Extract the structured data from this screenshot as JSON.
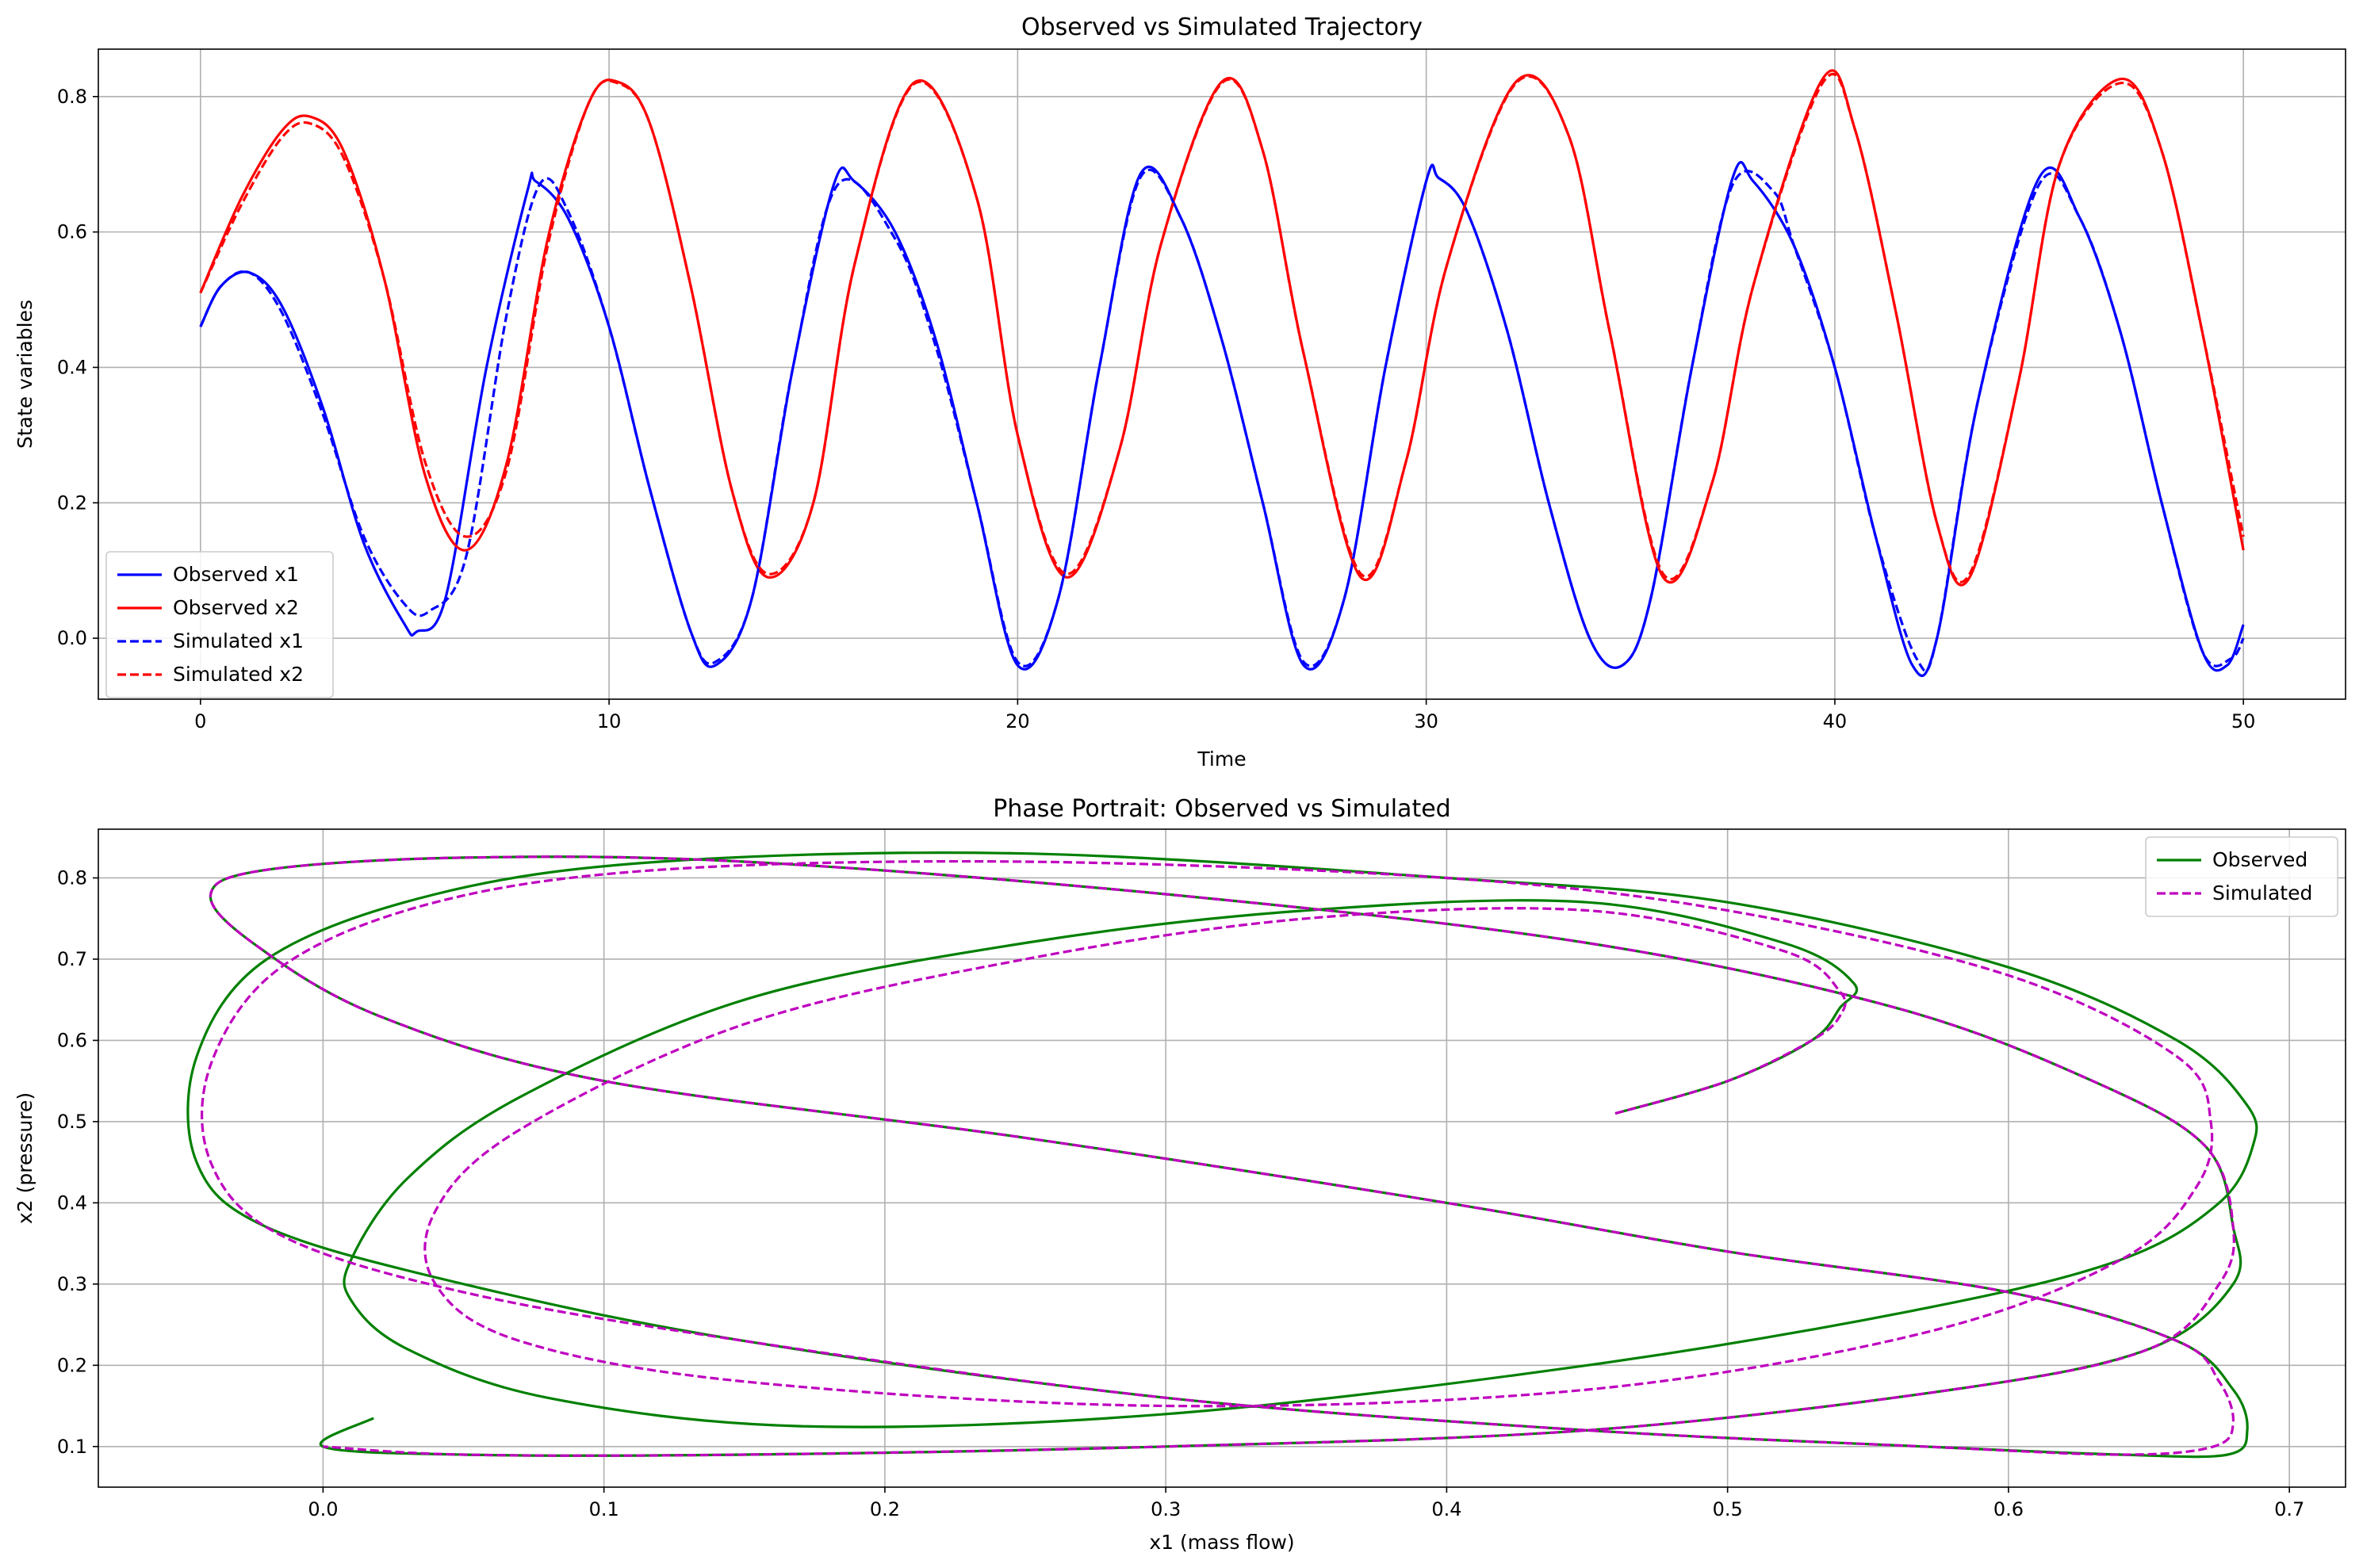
{
  "chart_data": [
    {
      "type": "line",
      "title": "Observed vs Simulated Trajectory",
      "xlabel": "Time",
      "ylabel": "State variables",
      "xlim": [
        -2.5,
        52.5
      ],
      "ylim": [
        -0.09,
        0.87
      ],
      "xticks": [
        0,
        10,
        20,
        30,
        40,
        50
      ],
      "yticks": [
        0.0,
        0.2,
        0.4,
        0.6,
        0.8
      ],
      "xtick_labels": [
        "0",
        "10",
        "20",
        "30",
        "40",
        "50"
      ],
      "ytick_labels": [
        "0.0",
        "0.2",
        "0.4",
        "0.6",
        "0.8"
      ],
      "grid": true,
      "legend_position": "lower-left",
      "series": [
        {
          "name": "Observed x1",
          "color": "#0000ff",
          "style": "solid",
          "x": [
            0,
            0.5,
            1.2,
            2,
            3,
            4,
            5,
            5.3,
            6,
            7,
            8,
            8.2,
            9,
            10,
            11,
            12,
            12.6,
            13.5,
            14.5,
            15.5,
            16,
            17,
            18,
            19,
            20,
            21,
            22,
            23,
            24,
            25,
            26,
            27,
            28,
            29,
            30,
            30.3,
            31,
            32,
            33,
            34,
            34.8,
            35.5,
            36.5,
            37.5,
            38,
            39,
            40,
            41,
            41.9,
            42.5,
            43.5,
            45,
            46,
            47,
            48,
            49,
            49.6,
            50
          ],
          "y": [
            0.46,
            0.52,
            0.54,
            0.49,
            0.34,
            0.14,
            0.02,
            0.01,
            0.06,
            0.4,
            0.66,
            0.675,
            0.62,
            0.46,
            0.22,
            0.01,
            -0.04,
            0.06,
            0.4,
            0.67,
            0.675,
            0.6,
            0.44,
            0.2,
            -0.04,
            0.06,
            0.4,
            0.685,
            0.62,
            0.44,
            0.2,
            -0.04,
            0.06,
            0.4,
            0.675,
            0.68,
            0.63,
            0.45,
            0.2,
            0.0,
            -0.04,
            0.06,
            0.4,
            0.68,
            0.675,
            0.58,
            0.4,
            0.15,
            -0.04,
            0.0,
            0.35,
            0.68,
            0.62,
            0.45,
            0.2,
            -0.02,
            -0.04,
            0.02
          ]
        },
        {
          "name": "Observed x2",
          "color": "#ff0000",
          "style": "solid",
          "x": [
            0,
            1,
            2,
            2.7,
            3.5,
            4.5,
            5.5,
            6.5,
            7.5,
            8.5,
            9.5,
            10.2,
            11,
            12,
            13,
            13.9,
            15,
            16,
            17.5,
            19,
            20,
            21.2,
            22.5,
            23.5,
            25,
            26,
            27,
            28.4,
            29.5,
            30.5,
            32.2,
            33.5,
            34.5,
            35.8,
            37,
            38,
            39.7,
            40.5,
            41.5,
            42.5,
            43.3,
            44.5,
            45.5,
            47,
            48,
            49,
            50
          ],
          "y": [
            0.51,
            0.65,
            0.75,
            0.77,
            0.72,
            0.53,
            0.24,
            0.13,
            0.26,
            0.59,
            0.79,
            0.822,
            0.76,
            0.52,
            0.22,
            0.09,
            0.2,
            0.55,
            0.822,
            0.65,
            0.3,
            0.09,
            0.28,
            0.58,
            0.822,
            0.72,
            0.42,
            0.09,
            0.26,
            0.55,
            0.822,
            0.74,
            0.45,
            0.09,
            0.23,
            0.52,
            0.826,
            0.75,
            0.48,
            0.17,
            0.09,
            0.38,
            0.7,
            0.826,
            0.72,
            0.45,
            0.13
          ]
        },
        {
          "name": "Simulated x1",
          "color": "#0000ff",
          "style": "dashed",
          "x": [
            0,
            0.5,
            1.2,
            2,
            3,
            4,
            5,
            5.6,
            6.5,
            7.5,
            8.3,
            9,
            10,
            11,
            12,
            12.6,
            13.5,
            14.5,
            15.6,
            17,
            18,
            19,
            20,
            21,
            22,
            23,
            24,
            25,
            26,
            27,
            28,
            29,
            30,
            30.3,
            31,
            32,
            33,
            34,
            34.8,
            35.5,
            36.5,
            37.5,
            38.5,
            39,
            40,
            41,
            42,
            42.5,
            43.5,
            45,
            46,
            47,
            48,
            49,
            49.7,
            50
          ],
          "y": [
            0.46,
            0.52,
            0.54,
            0.48,
            0.33,
            0.15,
            0.05,
            0.04,
            0.12,
            0.48,
            0.67,
            0.63,
            0.46,
            0.22,
            0.01,
            -0.035,
            0.06,
            0.4,
            0.67,
            0.59,
            0.43,
            0.2,
            -0.035,
            0.06,
            0.4,
            0.68,
            0.62,
            0.44,
            0.2,
            -0.035,
            0.06,
            0.4,
            0.675,
            0.68,
            0.63,
            0.45,
            0.2,
            0.0,
            -0.04,
            0.06,
            0.4,
            0.67,
            0.66,
            0.58,
            0.4,
            0.15,
            -0.03,
            0.0,
            0.35,
            0.67,
            0.62,
            0.45,
            0.2,
            -0.02,
            -0.03,
            0.0
          ]
        },
        {
          "name": "Simulated x2",
          "color": "#ff0000",
          "style": "dashed",
          "x": [
            0,
            1,
            2,
            2.7,
            3.5,
            4.5,
            5.5,
            6.5,
            7.5,
            8.5,
            9.5,
            10.2,
            11,
            12,
            13,
            13.9,
            15,
            16,
            17.5,
            19,
            20,
            21.2,
            22.5,
            23.5,
            25,
            26,
            27,
            28.4,
            29.5,
            30.5,
            32.2,
            33.5,
            34.5,
            35.8,
            37,
            38,
            39.7,
            40.5,
            41.5,
            42.5,
            43.3,
            44.5,
            45.5,
            47,
            48,
            49,
            50
          ],
          "y": [
            0.51,
            0.64,
            0.74,
            0.76,
            0.71,
            0.53,
            0.26,
            0.15,
            0.25,
            0.58,
            0.79,
            0.82,
            0.76,
            0.52,
            0.22,
            0.095,
            0.2,
            0.55,
            0.82,
            0.65,
            0.3,
            0.095,
            0.28,
            0.58,
            0.82,
            0.72,
            0.42,
            0.095,
            0.26,
            0.55,
            0.82,
            0.74,
            0.45,
            0.095,
            0.23,
            0.52,
            0.82,
            0.75,
            0.48,
            0.17,
            0.095,
            0.38,
            0.7,
            0.82,
            0.72,
            0.45,
            0.15
          ]
        }
      ]
    },
    {
      "type": "line",
      "title": "Phase Portrait: Observed vs Simulated",
      "xlabel": "x1 (mass flow)",
      "ylabel": "x2 (pressure)",
      "xlim": [
        -0.08,
        0.72
      ],
      "ylim": [
        0.05,
        0.86
      ],
      "xticks": [
        0.0,
        0.1,
        0.2,
        0.3,
        0.4,
        0.5,
        0.6,
        0.7
      ],
      "yticks": [
        0.1,
        0.2,
        0.3,
        0.4,
        0.5,
        0.6,
        0.7,
        0.8
      ],
      "xtick_labels": [
        "0.0",
        "0.1",
        "0.2",
        "0.3",
        "0.4",
        "0.5",
        "0.6",
        "0.7"
      ],
      "ytick_labels": [
        "0.1",
        "0.2",
        "0.3",
        "0.4",
        "0.5",
        "0.6",
        "0.7",
        "0.8"
      ],
      "grid": true,
      "legend_position": "top-right",
      "series": [
        {
          "name": "Observed",
          "color": "#008000",
          "style": "solid",
          "curves": [
            {
              "x": [
                0.46,
                0.5,
                0.53,
                0.54,
                0.545,
                0.52,
                0.45,
                0.35,
                0.25,
                0.15,
                0.07,
                0.03,
                0.01,
                0.01,
                0.03,
                0.08,
                0.17,
                0.3,
                0.45,
                0.57,
                0.64,
                0.675,
                0.687,
                0.685,
                0.66,
                0.6,
                0.5,
                0.4,
                0.25,
                0.12,
                0.04,
                -0.02,
                -0.045,
                -0.045,
                -0.02,
                0.05,
                0.15,
                0.3,
                0.45,
                0.57,
                0.64,
                0.678,
                0.685,
                0.68,
                0.66,
                0.6,
                0.5,
                0.4,
                0.25,
                0.1,
                0.02,
                -0.025,
                -0.04,
                -0.02,
                0.05,
                0.15,
                0.3,
                0.45,
                0.56,
                0.63,
                0.67,
                0.68,
                0.68,
                0.65,
                0.58,
                0.45,
                0.3,
                0.15,
                0.05,
                0.0,
                0.018
              ],
              "y": [
                0.51,
                0.55,
                0.6,
                0.64,
                0.67,
                0.72,
                0.77,
                0.76,
                0.72,
                0.65,
                0.53,
                0.43,
                0.33,
                0.28,
                0.22,
                0.16,
                0.125,
                0.14,
                0.2,
                0.27,
                0.33,
                0.4,
                0.47,
                0.52,
                0.6,
                0.69,
                0.77,
                0.8,
                0.83,
                0.82,
                0.78,
                0.7,
                0.58,
                0.45,
                0.37,
                0.3,
                0.23,
                0.16,
                0.12,
                0.1,
                0.09,
                0.09,
                0.12,
                0.17,
                0.23,
                0.29,
                0.34,
                0.4,
                0.48,
                0.55,
                0.63,
                0.72,
                0.78,
                0.81,
                0.825,
                0.82,
                0.78,
                0.72,
                0.64,
                0.55,
                0.47,
                0.37,
                0.3,
                0.22,
                0.17,
                0.12,
                0.1,
                0.09,
                0.09,
                0.1,
                0.135
              ]
            }
          ]
        },
        {
          "name": "Simulated",
          "color": "#bf00bf",
          "style": "dashed",
          "curves": [
            {
              "x": [
                0.46,
                0.5,
                0.53,
                0.54,
                0.54,
                0.52,
                0.45,
                0.35,
                0.25,
                0.15,
                0.07,
                0.04,
                0.04,
                0.07,
                0.15,
                0.3,
                0.45,
                0.57,
                0.64,
                0.667,
                0.672,
                0.66,
                0.6,
                0.5,
                0.4,
                0.25,
                0.12,
                0.04,
                -0.015,
                -0.04,
                -0.04,
                -0.015,
                0.05,
                0.15,
                0.3,
                0.45,
                0.57,
                0.64,
                0.673,
                0.68,
                0.675,
                0.66,
                0.6,
                0.5,
                0.4,
                0.25,
                0.1,
                0.02,
                -0.025,
                -0.04,
                -0.02,
                0.05,
                0.15,
                0.3,
                0.45,
                0.56,
                0.63,
                0.67,
                0.68,
                0.675,
                0.65,
                0.58,
                0.45,
                0.3,
                0.15,
                0.05,
                0.0
              ],
              "y": [
                0.51,
                0.55,
                0.6,
                0.63,
                0.66,
                0.71,
                0.76,
                0.75,
                0.7,
                0.62,
                0.49,
                0.39,
                0.3,
                0.23,
                0.18,
                0.15,
                0.17,
                0.24,
                0.33,
                0.42,
                0.5,
                0.58,
                0.68,
                0.76,
                0.8,
                0.82,
                0.81,
                0.77,
                0.69,
                0.57,
                0.45,
                0.36,
                0.29,
                0.23,
                0.16,
                0.12,
                0.1,
                0.09,
                0.1,
                0.13,
                0.18,
                0.23,
                0.29,
                0.34,
                0.4,
                0.48,
                0.55,
                0.63,
                0.72,
                0.78,
                0.81,
                0.825,
                0.82,
                0.78,
                0.72,
                0.64,
                0.55,
                0.47,
                0.37,
                0.3,
                0.22,
                0.17,
                0.12,
                0.1,
                0.09,
                0.09,
                0.1
              ]
            }
          ]
        }
      ]
    }
  ]
}
